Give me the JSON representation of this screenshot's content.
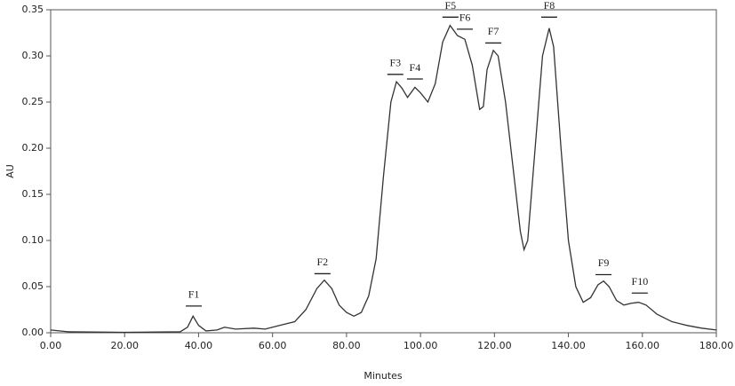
{
  "chart_data": {
    "type": "line",
    "x_label": "Minutes",
    "y_label": "AU",
    "color": "#333333",
    "x": [
      0,
      5,
      20,
      35,
      37,
      38.5,
      40,
      42,
      45,
      47,
      50,
      55,
      58,
      62,
      66,
      69,
      72,
      74,
      76,
      78,
      80,
      82,
      84,
      86,
      88,
      90,
      92,
      93.5,
      95,
      96.5,
      98.5,
      100,
      102,
      104,
      106,
      108,
      110,
      112,
      114,
      116,
      117,
      118,
      119.7,
      121,
      123,
      125,
      127,
      128,
      129,
      131,
      133,
      134.8,
      136,
      138,
      140,
      142,
      144,
      146,
      148,
      149.5,
      151,
      153,
      155,
      157,
      159,
      161,
      164,
      168,
      172,
      176,
      180
    ],
    "values": [
      0.003,
      0.001,
      0.0005,
      0.001,
      0.006,
      0.018,
      0.008,
      0.002,
      0.003,
      0.006,
      0.004,
      0.005,
      0.004,
      0.008,
      0.012,
      0.025,
      0.048,
      0.057,
      0.048,
      0.03,
      0.022,
      0.018,
      0.022,
      0.04,
      0.08,
      0.17,
      0.25,
      0.272,
      0.265,
      0.255,
      0.266,
      0.26,
      0.25,
      0.27,
      0.315,
      0.333,
      0.322,
      0.318,
      0.29,
      0.242,
      0.245,
      0.285,
      0.306,
      0.3,
      0.25,
      0.18,
      0.11,
      0.09,
      0.1,
      0.2,
      0.3,
      0.33,
      0.31,
      0.2,
      0.1,
      0.05,
      0.033,
      0.038,
      0.052,
      0.056,
      0.05,
      0.035,
      0.03,
      0.032,
      0.033,
      0.03,
      0.02,
      0.012,
      0.008,
      0.005,
      0.003
    ],
    "xlim": [
      0,
      180
    ],
    "xticks": [
      {
        "value": 0,
        "label": "0.00"
      },
      {
        "value": 20,
        "label": "20.00"
      },
      {
        "value": 40,
        "label": "40.00"
      },
      {
        "value": 60,
        "label": "60.00"
      },
      {
        "value": 80,
        "label": "80.00"
      },
      {
        "value": 100,
        "label": "100.00"
      },
      {
        "value": 120,
        "label": "120.00"
      },
      {
        "value": 140,
        "label": "140.00"
      },
      {
        "value": 160,
        "label": "160.00"
      },
      {
        "value": 180,
        "label": "180.00"
      }
    ],
    "ylim": [
      0,
      0.35
    ],
    "yticks": [
      {
        "value": 0,
        "label": "0.00"
      },
      {
        "value": 0.05,
        "label": "0.05"
      },
      {
        "value": 0.1,
        "label": "0.10"
      },
      {
        "value": 0.15,
        "label": "0.15"
      },
      {
        "value": 0.2,
        "label": "0.20"
      },
      {
        "value": 0.25,
        "label": "0.25"
      },
      {
        "value": 0.3,
        "label": "0.30"
      },
      {
        "value": 0.35,
        "label": "0.35"
      }
    ],
    "annotations": [
      {
        "label": "F1",
        "x": 38.7,
        "y": 0.029
      },
      {
        "label": "F2",
        "x": 73.5,
        "y": 0.064
      },
      {
        "label": "F3",
        "x": 93.2,
        "y": 0.28
      },
      {
        "label": "F4",
        "x": 98.5,
        "y": 0.275
      },
      {
        "label": "F5",
        "x": 108.1,
        "y": 0.342
      },
      {
        "label": "F6",
        "x": 112,
        "y": 0.329
      },
      {
        "label": "F7",
        "x": 119.7,
        "y": 0.314
      },
      {
        "label": "F8",
        "x": 134.8,
        "y": 0.342
      },
      {
        "label": "F9",
        "x": 149.5,
        "y": 0.063
      },
      {
        "label": "F10",
        "x": 159.3,
        "y": 0.043
      }
    ]
  }
}
